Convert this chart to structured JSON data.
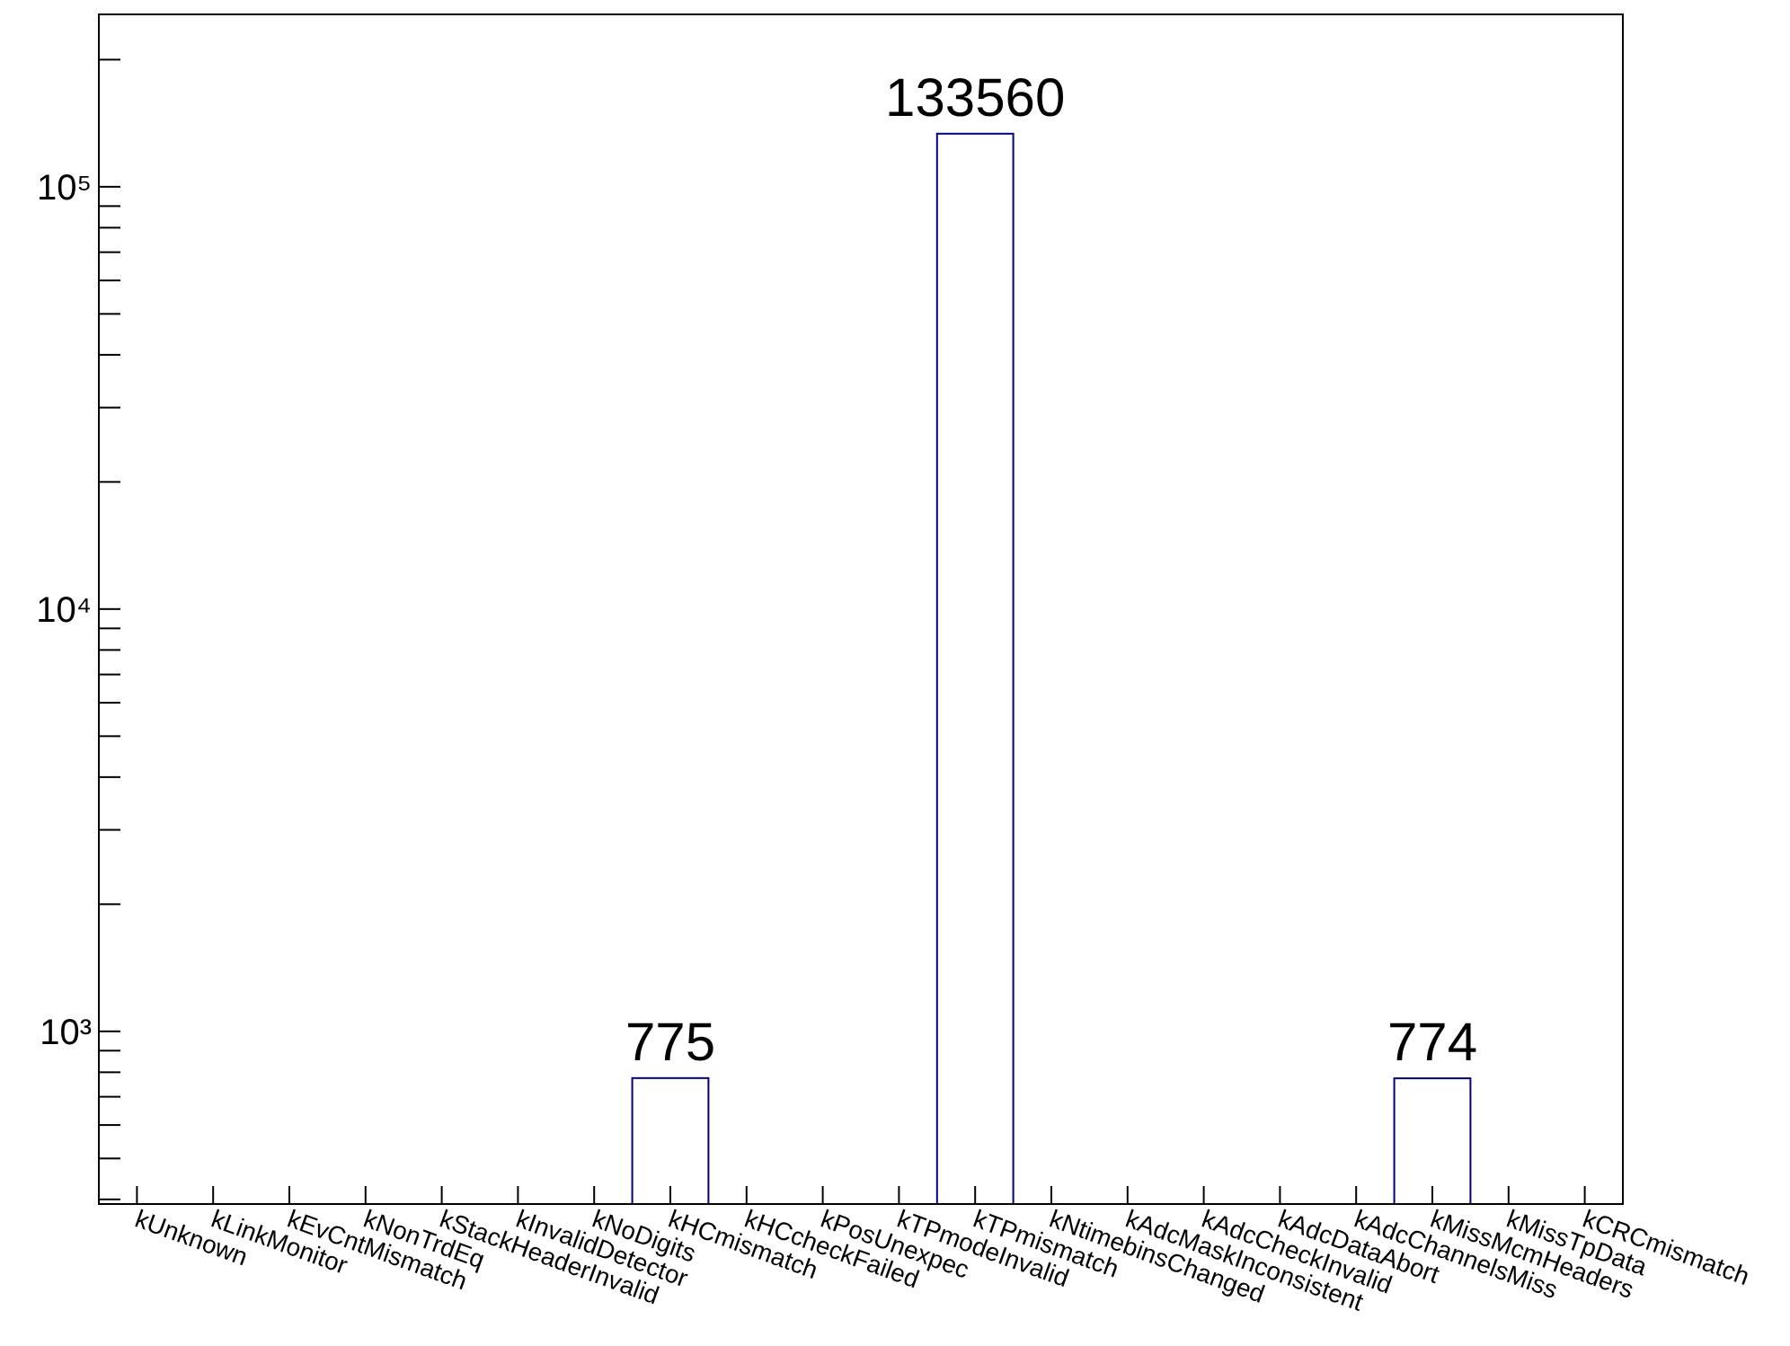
{
  "chart_data": {
    "type": "bar",
    "categories": [
      "kUnknown",
      "kLinkMonitor",
      "kEvCntMismatch",
      "kNonTrdEq",
      "kStackHeaderInvalid",
      "kInvalidDetector",
      "kNoDigits",
      "kHCmismatch",
      "kHCcheckFailed",
      "kPosUnexpec",
      "kTPmodeInvalid",
      "kTPmismatch",
      "kNtimebinsChanged",
      "kAdcMaskInconsistent",
      "kAdcCheckInvalid",
      "kAdcDataAbort",
      "kAdcChannelsMiss",
      "kMissMcmHeaders",
      "kMissTpData",
      "kCRCmismatch"
    ],
    "values": [
      null,
      null,
      null,
      null,
      null,
      null,
      null,
      775,
      null,
      null,
      null,
      133560,
      null,
      null,
      null,
      null,
      null,
      774,
      null,
      null
    ],
    "color": "#000080",
    "data_labels": true,
    "log": true,
    "ylim": [
      390,
      256000
    ],
    "yticks": [
      {
        "value": 400,
        "label": null
      },
      {
        "value": 500,
        "label": null
      },
      {
        "value": 600,
        "label": null
      },
      {
        "value": 700,
        "label": null
      },
      {
        "value": 800,
        "label": null
      },
      {
        "value": 900,
        "label": null
      },
      {
        "value": 1000,
        "label": "10³"
      },
      {
        "value": 2000,
        "label": null
      },
      {
        "value": 3000,
        "label": null
      },
      {
        "value": 4000,
        "label": null
      },
      {
        "value": 5000,
        "label": null
      },
      {
        "value": 6000,
        "label": null
      },
      {
        "value": 7000,
        "label": null
      },
      {
        "value": 8000,
        "label": null
      },
      {
        "value": 9000,
        "label": null
      },
      {
        "value": 10000,
        "label": "10⁴"
      },
      {
        "value": 20000,
        "label": null
      },
      {
        "value": 30000,
        "label": null
      },
      {
        "value": 40000,
        "label": null
      },
      {
        "value": 50000,
        "label": null
      },
      {
        "value": 60000,
        "label": null
      },
      {
        "value": 70000,
        "label": null
      },
      {
        "value": 80000,
        "label": null
      },
      {
        "value": 90000,
        "label": null
      },
      {
        "value": 100000,
        "label": "10⁵"
      },
      {
        "value": 200000,
        "label": null
      }
    ],
    "grid": false
  }
}
